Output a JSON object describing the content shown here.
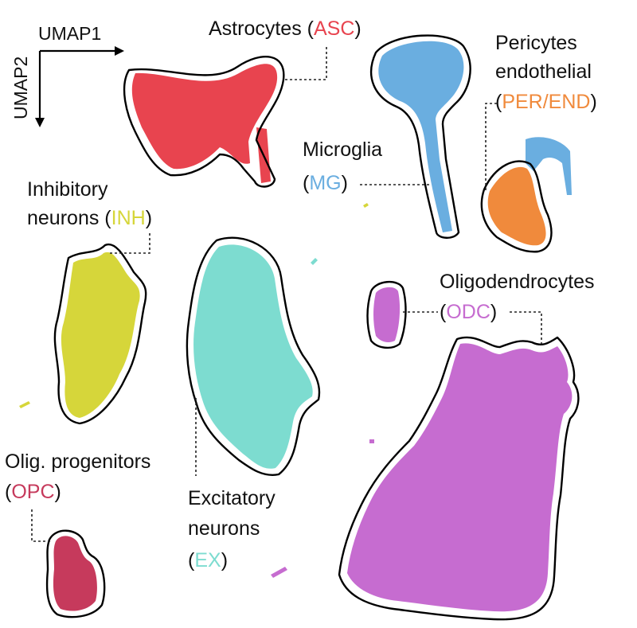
{
  "chart_data": {
    "type": "scatter",
    "title": "",
    "xlabel": "UMAP1",
    "ylabel": "UMAP2",
    "grid": false,
    "legend": "none",
    "clusters": [
      {
        "id": "ASC",
        "name": "Astrocytes",
        "abbr": "ASC",
        "color": "#e8444f"
      },
      {
        "id": "MG",
        "name": "Microglia",
        "abbr": "MG",
        "color": "#6aaee0"
      },
      {
        "id": "PER",
        "name": "Pericytes endothelial",
        "abbr": "PER/END",
        "color": "#f08a3c"
      },
      {
        "id": "INH",
        "name": "Inhibitory neurons",
        "abbr": "INH",
        "color": "#d6d63a"
      },
      {
        "id": "EX",
        "name": "Excitatory neurons",
        "abbr": "EX",
        "color": "#7ddcd0"
      },
      {
        "id": "ODC",
        "name": "Oligodendrocytes",
        "abbr": "ODC",
        "color": "#c66cd0"
      },
      {
        "id": "OPC",
        "name": "Olig. progenitors",
        "abbr": "OPC",
        "color": "#c63a5c"
      }
    ]
  },
  "labels": {
    "asc_name": "Astrocytes (",
    "asc_abbr": "ASC",
    "asc_close": ")",
    "mg_name": "Microglia",
    "mg_open": "(",
    "mg_abbr": "MG",
    "mg_close": ")",
    "per_line1": "Pericytes",
    "per_line2": "endothelial",
    "per_open": "(",
    "per_abbr": "PER/END",
    "per_close": ")",
    "inh_line1": "Inhibitory",
    "inh_line2": "neurons (",
    "inh_abbr": "INH",
    "inh_close": ")",
    "odc_name": "Oligodendrocytes",
    "odc_open": "(",
    "odc_abbr": "ODC",
    "odc_close": ")",
    "opc_name": "Olig. progenitors",
    "opc_open": "(",
    "opc_abbr": "OPC",
    "opc_close": ")",
    "ex_line1": "Excitatory",
    "ex_line2": "neurons",
    "ex_open": "(",
    "ex_abbr": "EX",
    "ex_close": ")"
  }
}
